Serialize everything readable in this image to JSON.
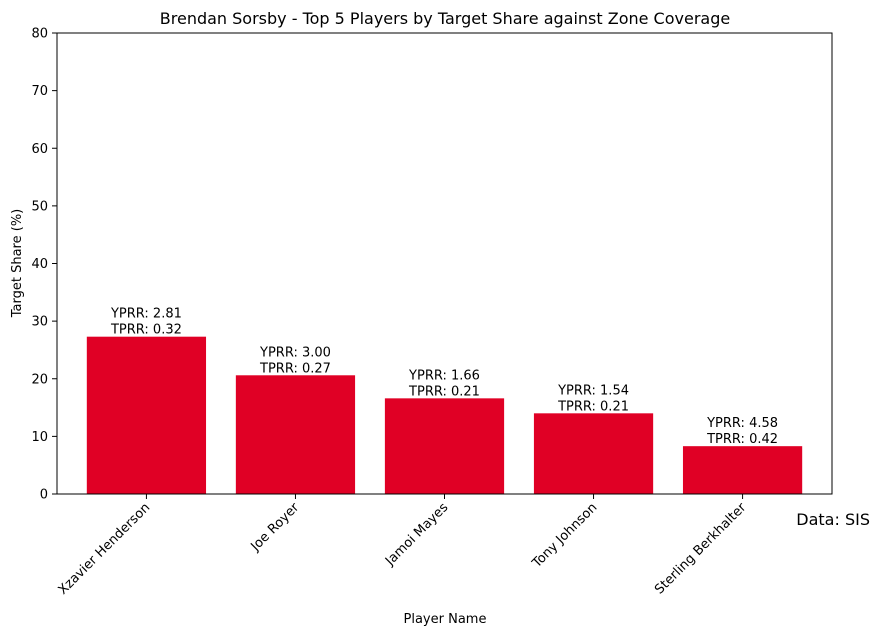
{
  "chart_data": {
    "type": "bar",
    "title": "Brendan Sorsby - Top 5 Players by Target Share against Zone Coverage",
    "xlabel": "Player Name",
    "ylabel": "Target Share (%)",
    "ylim": [
      0,
      80
    ],
    "yticks": [
      0,
      10,
      20,
      30,
      40,
      50,
      60,
      70,
      80
    ],
    "categories": [
      "Xzavier Henderson",
      "Joe Royer",
      "Jamoi Mayes",
      "Tony Johnson",
      "Sterling Berkhalter"
    ],
    "values": [
      27.3,
      20.6,
      16.6,
      14.0,
      8.3
    ],
    "annotations": [
      {
        "yprr": "YPRR: 2.81",
        "tprr": "TPRR: 0.32"
      },
      {
        "yprr": "YPRR: 3.00",
        "tprr": "TPRR: 0.27"
      },
      {
        "yprr": "YPRR: 1.66",
        "tprr": "TPRR: 0.21"
      },
      {
        "yprr": "YPRR: 1.54",
        "tprr": "TPRR: 0.21"
      },
      {
        "yprr": "YPRR: 4.58",
        "tprr": "TPRR: 0.42"
      }
    ],
    "bar_color": "#e00025",
    "grid": false,
    "source_note": "Data: SIS"
  }
}
